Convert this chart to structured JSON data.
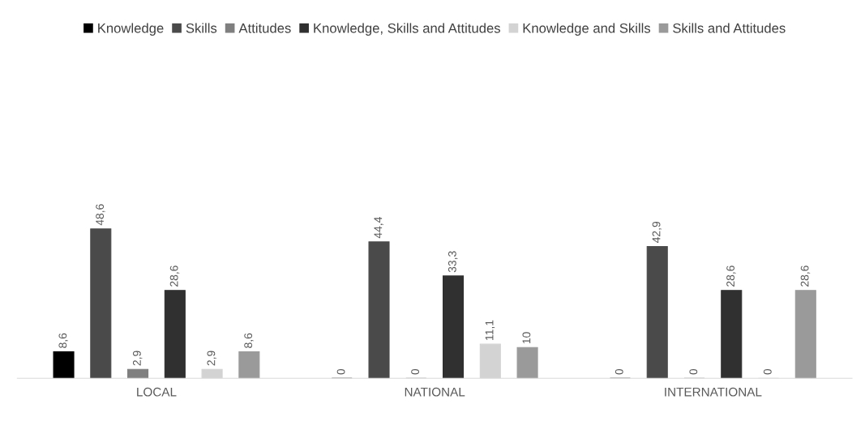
{
  "chart_data": {
    "type": "bar",
    "categories": [
      "LOCAL",
      "NATIONAL",
      "INTERNATIONAL"
    ],
    "series": [
      {
        "name": "Knowledge",
        "color": "#000000",
        "values": [
          8.6,
          0,
          0
        ],
        "value_labels": [
          "8,6",
          "0",
          "0"
        ]
      },
      {
        "name": "Skills",
        "color": "#4a4a4a",
        "values": [
          48.6,
          44.4,
          42.9
        ],
        "value_labels": [
          "48,6",
          "44,4",
          "42,9"
        ]
      },
      {
        "name": "Attitudes",
        "color": "#7f7f7f",
        "values": [
          2.9,
          0,
          0
        ],
        "value_labels": [
          "2,9",
          "0",
          "0"
        ]
      },
      {
        "name": "Knowledge, Skills and Attitudes",
        "color": "#303030",
        "values": [
          28.6,
          33.3,
          28.6
        ],
        "value_labels": [
          "28,6",
          "33,3",
          "28,6"
        ]
      },
      {
        "name": "Knowledge and Skills",
        "color": "#d3d3d3",
        "values": [
          2.9,
          11.1,
          0
        ],
        "value_labels": [
          "2,9",
          "11,1",
          "0"
        ]
      },
      {
        "name": "Skills and Attitudes",
        "color": "#9a9a9a",
        "values": [
          8.6,
          10,
          28.6
        ],
        "value_labels": [
          "8,6",
          "10",
          "28,6"
        ]
      }
    ],
    "legend": "top",
    "grid": false
  }
}
